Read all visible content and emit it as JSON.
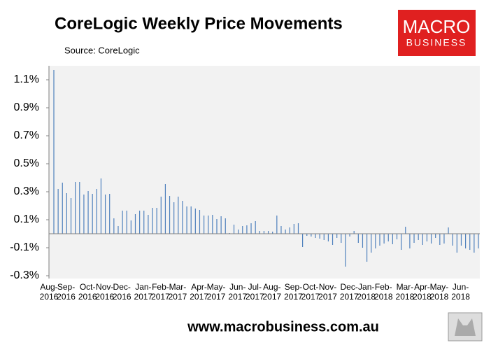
{
  "chart_data": {
    "type": "bar",
    "title": "CoreLogic Weekly Price Movements",
    "subtitle": "Source: CoreLogic",
    "logo": [
      "MACRO",
      "BUSINESS"
    ],
    "footer": "www.macrobusiness.com.au",
    "color": "#4f81bd",
    "grid": false,
    "categories": [
      "Aug-2016",
      null,
      null,
      null,
      "Sep-2016",
      null,
      null,
      null,
      null,
      "Oct-2016",
      null,
      null,
      null,
      "Nov-2016",
      null,
      null,
      null,
      "Dec-2016",
      null,
      null,
      null,
      null,
      "Jan-2017",
      null,
      null,
      null,
      "Feb-2017",
      null,
      null,
      null,
      "Mar-2017",
      null,
      null,
      null,
      null,
      "Apr-2017",
      null,
      null,
      null,
      "May-2017",
      null,
      null,
      null,
      null,
      "Jun-2017",
      null,
      null,
      null,
      "Jul-2017",
      null,
      null,
      null,
      "Aug-2017",
      null,
      null,
      null,
      null,
      "Sep-2017",
      null,
      null,
      null,
      "Oct-2017",
      null,
      null,
      null,
      "Nov-2017",
      null,
      null,
      null,
      null,
      "Dec-2017",
      null,
      null,
      null,
      "Jan-2018",
      null,
      null,
      null,
      "Feb-2018",
      null,
      null,
      null,
      null,
      "Mar-2018",
      null,
      null,
      null,
      "Apr-2018",
      null,
      null,
      null,
      "May-2018",
      null,
      null,
      null,
      null,
      "Jun-2018",
      null,
      null,
      null
    ],
    "values": [
      1.17,
      0.32,
      0.365,
      0.29,
      0.255,
      0.37,
      0.37,
      0.28,
      0.305,
      0.285,
      0.32,
      0.395,
      0.28,
      0.285,
      0.11,
      0.055,
      0.165,
      0.165,
      0.095,
      0.14,
      0.165,
      0.165,
      0.135,
      0.185,
      0.185,
      0.265,
      0.355,
      0.27,
      0.225,
      0.265,
      0.235,
      0.195,
      0.195,
      0.18,
      0.17,
      0.13,
      0.13,
      0.135,
      0.105,
      0.125,
      0.11,
      0.005,
      0.065,
      0.03,
      0.055,
      0.06,
      0.075,
      0.09,
      0.02,
      0.02,
      0.02,
      0.015,
      0.13,
      0.055,
      0.03,
      0.045,
      0.07,
      0.075,
      -0.095,
      -0.015,
      -0.02,
      -0.03,
      -0.035,
      -0.045,
      -0.055,
      -0.08,
      -0.03,
      -0.065,
      -0.235,
      -0.02,
      0.02,
      -0.065,
      -0.1,
      -0.2,
      -0.135,
      -0.105,
      -0.085,
      -0.07,
      -0.055,
      -0.075,
      -0.04,
      -0.115,
      0.05,
      -0.105,
      -0.065,
      -0.045,
      -0.08,
      -0.055,
      -0.07,
      -0.03,
      -0.08,
      -0.07,
      0.045,
      -0.085,
      -0.135,
      -0.085,
      -0.105,
      -0.115,
      -0.135,
      -0.105
    ],
    "ylim": [
      -0.32,
      1.2
    ],
    "yticks": [
      {
        "value": -0.3,
        "label": "-0.3%"
      },
      {
        "value": -0.1,
        "label": "-0.1%"
      },
      {
        "value": 0.1,
        "label": "0.1%"
      },
      {
        "value": 0.3,
        "label": "0.3%"
      },
      {
        "value": 0.5,
        "label": "0.5%"
      },
      {
        "value": 0.7,
        "label": "0.7%"
      },
      {
        "value": 0.9,
        "label": "0.9%"
      },
      {
        "value": 1.1,
        "label": "1.1%"
      }
    ]
  }
}
